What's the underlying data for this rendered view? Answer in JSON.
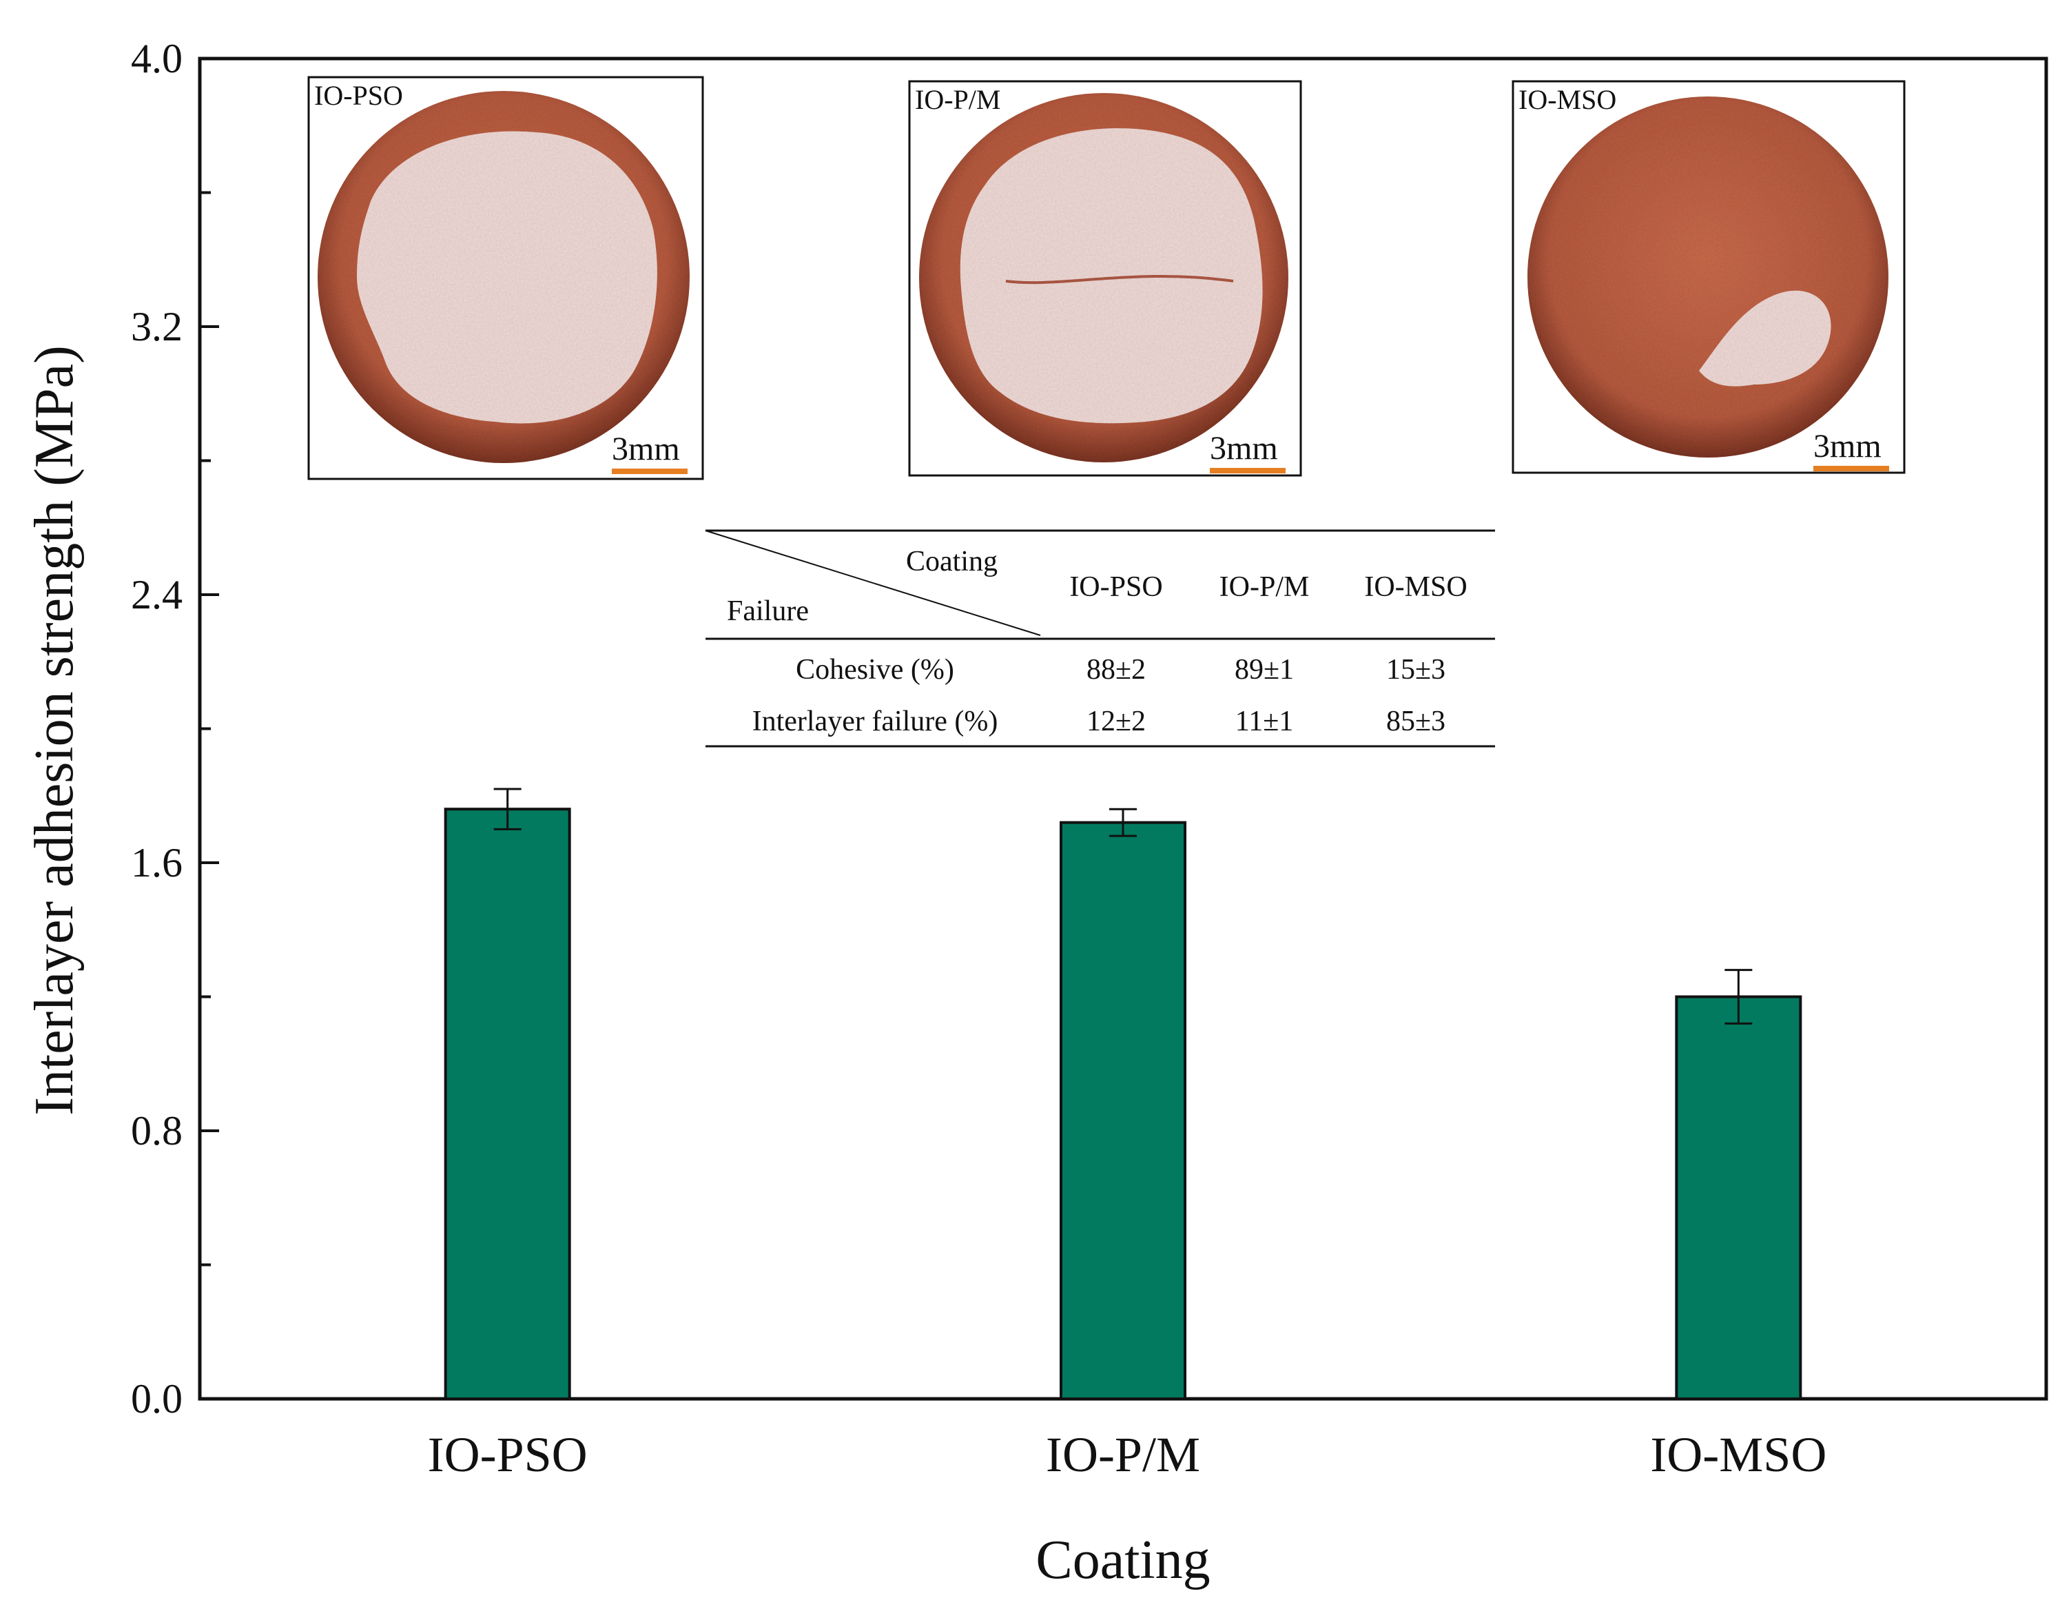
{
  "chart_data": {
    "type": "bar",
    "title": "",
    "xlabel": "Coating",
    "ylabel": "Interlayer adhesion strength (MPa)",
    "categories": [
      "IO-PSO",
      "IO-P/M",
      "IO-MSO"
    ],
    "values": [
      1.76,
      1.72,
      1.2
    ],
    "errors": [
      0.06,
      0.04,
      0.08
    ],
    "ylim": [
      0.0,
      4.0
    ],
    "yticks": [
      "0.0",
      "0.8",
      "1.6",
      "2.4",
      "3.2",
      "4.0"
    ],
    "grid": false,
    "bar_color": "#027a5f"
  },
  "photos": [
    {
      "label": "IO-PSO",
      "scale": "3mm",
      "failure": "cohesive-large"
    },
    {
      "label": "IO-P/M",
      "scale": "3mm",
      "failure": "cohesive-cracked"
    },
    {
      "label": "IO-MSO",
      "scale": "3mm",
      "failure": "interlayer"
    }
  ],
  "colors": {
    "substrate": "#bf6145",
    "coating": "#efd9d6",
    "scale_bar": "#e67e22"
  },
  "table": {
    "header_col": "Coating",
    "header_row": "Failure",
    "columns": [
      "IO-PSO",
      "IO-P/M",
      "IO-MSO"
    ],
    "rows": [
      {
        "label": "Cohesive (%)",
        "values": [
          "88±2",
          "89±1",
          "15±3"
        ]
      },
      {
        "label": "Interlayer failure (%)",
        "values": [
          "12±2",
          "11±1",
          "85±3"
        ]
      }
    ]
  }
}
